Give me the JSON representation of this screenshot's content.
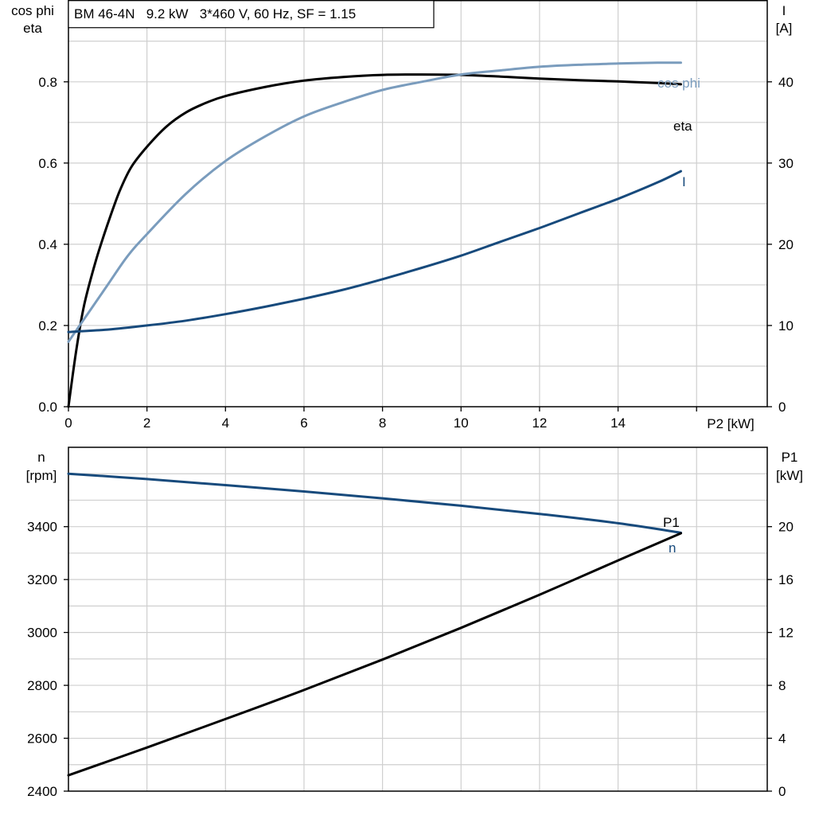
{
  "chart_data": [
    {
      "type": "line",
      "title": "BM 46-4N   9.2 kW   3*460 V, 60 Hz, SF = 1.15",
      "xlabel": "P2 [kW]",
      "ylabel_left": [
        "cos phi",
        "eta"
      ],
      "ylabel_right": [
        "I",
        "[A]"
      ],
      "xlim": [
        0,
        17.8
      ],
      "ylim_left": [
        0,
        1.0
      ],
      "ylim_right": [
        0,
        50
      ],
      "x_ticks": [
        0,
        2,
        4,
        6,
        8,
        10,
        12,
        14
      ],
      "y_ticks_left": [
        0.0,
        0.2,
        0.4,
        0.6,
        0.8
      ],
      "y_ticks_left_labels": [
        "0.0",
        "0.2",
        "0.4",
        "0.6",
        "0.8"
      ],
      "y_ticks_right": [
        0,
        10,
        20,
        30,
        40
      ],
      "grid": true,
      "series": [
        {
          "name": "eta",
          "axis": "left",
          "color": "#000000",
          "x": [
            0,
            0.2,
            0.4,
            0.7,
            1.0,
            1.3,
            1.6,
            2.0,
            2.5,
            3.0,
            3.5,
            4.0,
            5.0,
            6.0,
            7.0,
            8.0,
            9.0,
            10.0,
            11.0,
            12.0,
            13.0,
            14.0,
            15.0,
            15.6
          ],
          "values": [
            0.0,
            0.14,
            0.25,
            0.36,
            0.45,
            0.53,
            0.59,
            0.64,
            0.69,
            0.725,
            0.748,
            0.765,
            0.787,
            0.803,
            0.812,
            0.817,
            0.818,
            0.817,
            0.813,
            0.808,
            0.804,
            0.801,
            0.797,
            0.794
          ]
        },
        {
          "name": "cos phi",
          "axis": "left",
          "color": "#7a9cbd",
          "x": [
            0,
            0.5,
            1.0,
            1.5,
            2.0,
            3.0,
            4.0,
            5.0,
            6.0,
            7.0,
            8.0,
            9.0,
            10.0,
            11.0,
            12.0,
            13.0,
            14.0,
            15.0,
            15.6
          ],
          "values": [
            0.16,
            0.23,
            0.3,
            0.37,
            0.425,
            0.525,
            0.605,
            0.665,
            0.715,
            0.75,
            0.78,
            0.8,
            0.818,
            0.828,
            0.837,
            0.842,
            0.845,
            0.847,
            0.847
          ]
        },
        {
          "name": "I",
          "axis": "right",
          "color": "#174a7c",
          "x": [
            0,
            1,
            2,
            3,
            4,
            5,
            6,
            7,
            8,
            9,
            10,
            11,
            12,
            13,
            14,
            15,
            15.6
          ],
          "values": [
            9.2,
            9.5,
            10.0,
            10.6,
            11.4,
            12.3,
            13.3,
            14.4,
            15.7,
            17.1,
            18.6,
            20.3,
            22.0,
            23.8,
            25.6,
            27.6,
            29.0
          ]
        }
      ],
      "annotations": [
        "cos phi",
        "eta",
        "I"
      ]
    },
    {
      "type": "line",
      "xlabel": "",
      "ylabel_left": [
        "n",
        "[rpm]"
      ],
      "ylabel_right": [
        "P1",
        "[kW]"
      ],
      "xlim": [
        0,
        17.8
      ],
      "ylim_left": [
        2400,
        3700
      ],
      "ylim_right": [
        0,
        26
      ],
      "y_ticks_left": [
        2400,
        2600,
        2800,
        3000,
        3200,
        3400
      ],
      "y_ticks_right": [
        0,
        4,
        8,
        12,
        16,
        20
      ],
      "grid": true,
      "series": [
        {
          "name": "n",
          "axis": "left",
          "color": "#174a7c",
          "x": [
            0,
            2,
            4,
            6,
            8,
            10,
            12,
            14,
            15.6
          ],
          "values": [
            3600,
            3580,
            3557,
            3533,
            3507,
            3479,
            3448,
            3413,
            3377
          ]
        },
        {
          "name": "P1",
          "axis": "right",
          "color": "#000000",
          "x": [
            0,
            2,
            4,
            6,
            8,
            10,
            12,
            14,
            15.6
          ],
          "values": [
            1.2,
            3.3,
            5.45,
            7.65,
            9.95,
            12.35,
            14.85,
            17.45,
            19.5
          ]
        }
      ],
      "annotations": [
        "P1",
        "n"
      ]
    }
  ]
}
